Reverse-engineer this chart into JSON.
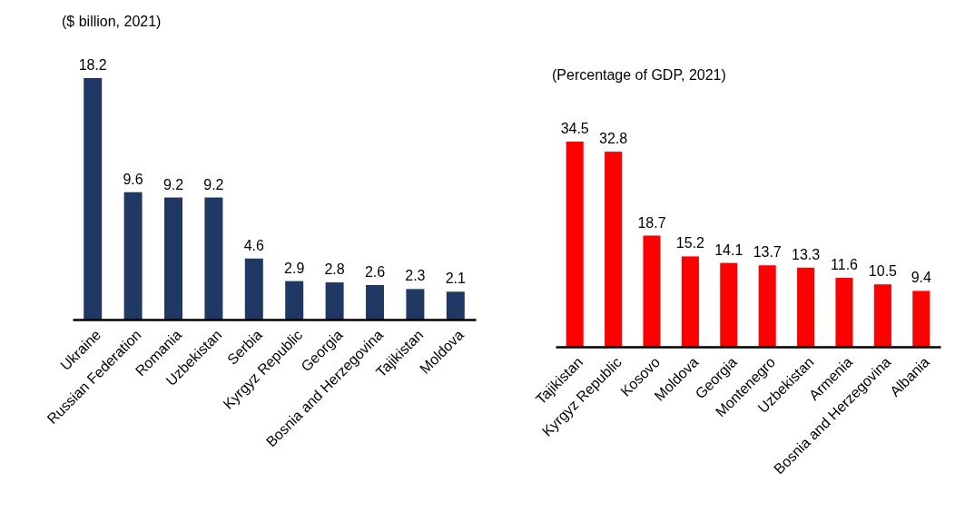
{
  "chart_data": [
    {
      "type": "bar",
      "title": "($ billion, 2021)",
      "categories": [
        "Ukraine",
        "Russian Federation",
        "Romania",
        "Uzbekistan",
        "Serbia",
        "Kyrgyz Republic",
        "Georgia",
        "Bosnia and Herzegovina",
        "Tajikistan",
        "Moldova"
      ],
      "values": [
        18.2,
        9.6,
        9.2,
        9.2,
        4.6,
        2.9,
        2.8,
        2.6,
        2.3,
        2.1
      ],
      "color": "#203864",
      "data_labels": true
    },
    {
      "type": "bar",
      "title": "(Percentage of GDP, 2021)",
      "categories": [
        "Tajikistan",
        "Kyrgyz Republic",
        "Kosovo",
        "Moldova",
        "Georgia",
        "Montenegro",
        "Uzbekistan",
        "Armenia",
        "Bosnia and Herzegovina",
        "Albania"
      ],
      "values": [
        34.5,
        32.8,
        18.7,
        15.2,
        14.1,
        13.7,
        13.3,
        11.6,
        10.5,
        9.4
      ],
      "color": "#ff0000",
      "data_labels": true
    }
  ]
}
